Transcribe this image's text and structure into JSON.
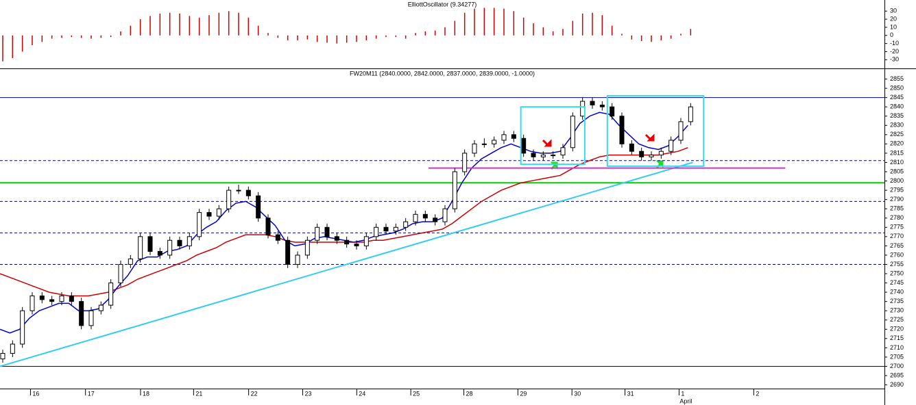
{
  "chart_data": [
    {
      "type": "bar",
      "title": "ElliottOscillator (9.34277)",
      "color": "#cc0000",
      "xlim": [
        0,
        90
      ],
      "ylim": [
        -39,
        42
      ],
      "yticks": [
        30,
        20,
        10,
        0,
        -10,
        -20,
        -30
      ],
      "values": [
        -32,
        -28,
        -20,
        -12,
        -8,
        -4,
        -3,
        -2,
        -3,
        -4,
        -3,
        -2,
        5,
        12,
        20,
        24,
        27,
        28,
        27,
        24,
        22,
        25,
        28,
        30,
        28,
        22,
        12,
        3,
        -3,
        -6,
        -6,
        -5,
        -8,
        -9,
        -10,
        -9,
        -8,
        -6,
        -4,
        -2,
        -2,
        -4,
        3,
        5,
        6,
        10,
        18,
        28,
        33,
        34,
        34,
        33,
        30,
        22,
        15,
        10,
        5,
        8,
        18,
        27,
        28,
        25,
        12,
        2,
        -5,
        -7,
        -8,
        -6,
        -4,
        2,
        8
      ]
    },
    {
      "type": "candlestick",
      "title": "FW20M11 (2840.0000, 2842.0000, 2837.0000, 2839.0000, -1.0000)",
      "up_color": "#ffffff",
      "down_color": "#000000",
      "xlim": [
        0,
        90
      ],
      "ylim": [
        2688,
        2860
      ],
      "yticks": [
        2855,
        2850,
        2845,
        2840,
        2835,
        2830,
        2825,
        2820,
        2815,
        2810,
        2805,
        2800,
        2795,
        2790,
        2785,
        2780,
        2775,
        2770,
        2765,
        2760,
        2755,
        2750,
        2745,
        2740,
        2735,
        2730,
        2725,
        2720,
        2715,
        2710,
        2705,
        2700,
        2695,
        2690
      ],
      "xticks": [
        {
          "value": 3.1,
          "label": "16"
        },
        {
          "value": 8.7,
          "label": "17"
        },
        {
          "value": 14.3,
          "label": "18"
        },
        {
          "value": 19.7,
          "label": "21"
        },
        {
          "value": 25.3,
          "label": "22"
        },
        {
          "value": 30.8,
          "label": "23"
        },
        {
          "value": 36.3,
          "label": "24"
        },
        {
          "value": 41.8,
          "label": "25"
        },
        {
          "value": 47.2,
          "label": "28"
        },
        {
          "value": 52.7,
          "label": "29"
        },
        {
          "value": 58.2,
          "label": "30"
        },
        {
          "value": 63.6,
          "label": "31"
        },
        {
          "value": 69.1,
          "label": "1"
        },
        {
          "value": 76.7,
          "label": "2"
        }
      ],
      "annotations": [
        {
          "text": "April",
          "x": 69.1
        }
      ],
      "open": [
        2704,
        2707,
        2712,
        2730,
        2738,
        2736,
        2735,
        2738,
        2735,
        2722,
        2730,
        2733,
        2745,
        2755,
        2758,
        2770,
        2762,
        2760,
        2768,
        2765,
        2770,
        2783,
        2781,
        2785,
        2795,
        2795,
        2792,
        2780,
        2771,
        2768,
        2755,
        2760,
        2768,
        2775,
        2770,
        2768,
        2766,
        2765,
        2770,
        2775,
        2773,
        2775,
        2778,
        2782,
        2780,
        2778,
        2785,
        2805,
        2815,
        2820,
        2820,
        2822,
        2825,
        2823,
        2815,
        2813,
        2814,
        2814,
        2818,
        2835,
        2843,
        2841,
        2840,
        2835,
        2820,
        2816,
        2813,
        2814,
        2816,
        2822,
        2832
      ],
      "high": [
        2709,
        2714,
        2732,
        2740,
        2740,
        2738,
        2740,
        2740,
        2737,
        2732,
        2735,
        2747,
        2757,
        2760,
        2772,
        2772,
        2764,
        2770,
        2770,
        2772,
        2785,
        2785,
        2787,
        2797,
        2798,
        2797,
        2794,
        2782,
        2773,
        2770,
        2762,
        2770,
        2777,
        2777,
        2772,
        2770,
        2768,
        2772,
        2777,
        2777,
        2777,
        2780,
        2784,
        2784,
        2782,
        2787,
        2807,
        2817,
        2822,
        2823,
        2824,
        2827,
        2827,
        2825,
        2817,
        2816,
        2816,
        2820,
        2837,
        2845,
        2845,
        2843,
        2842,
        2837,
        2822,
        2818,
        2816,
        2818,
        2824,
        2834,
        2842
      ],
      "low": [
        2702,
        2705,
        2710,
        2728,
        2734,
        2733,
        2733,
        2733,
        2720,
        2720,
        2728,
        2731,
        2743,
        2753,
        2756,
        2760,
        2758,
        2758,
        2763,
        2763,
        2768,
        2779,
        2779,
        2783,
        2793,
        2790,
        2778,
        2769,
        2766,
        2753,
        2753,
        2758,
        2766,
        2768,
        2766,
        2764,
        2763,
        2763,
        2768,
        2771,
        2771,
        2773,
        2776,
        2778,
        2776,
        2776,
        2783,
        2803,
        2813,
        2818,
        2818,
        2820,
        2821,
        2813,
        2811,
        2811,
        2812,
        2812,
        2816,
        2833,
        2839,
        2838,
        2833,
        2818,
        2814,
        2811,
        2811,
        2812,
        2814,
        2820,
        2830
      ],
      "close": [
        2707,
        2712,
        2730,
        2738,
        2736,
        2735,
        2738,
        2735,
        2722,
        2730,
        2733,
        2745,
        2755,
        2758,
        2770,
        2762,
        2760,
        2768,
        2765,
        2770,
        2783,
        2781,
        2785,
        2795,
        2795,
        2792,
        2780,
        2771,
        2768,
        2755,
        2760,
        2768,
        2775,
        2770,
        2768,
        2766,
        2765,
        2770,
        2775,
        2773,
        2775,
        2778,
        2782,
        2780,
        2778,
        2785,
        2805,
        2815,
        2820,
        2820,
        2822,
        2825,
        2823,
        2815,
        2813,
        2814,
        2814,
        2818,
        2835,
        2843,
        2841,
        2840,
        2835,
        2820,
        2816,
        2813,
        2814,
        2816,
        2822,
        2832,
        2840
      ],
      "overlays": [
        {
          "color": "#cc0000",
          "values": [
            2750,
            2748,
            2746,
            2744,
            2742,
            2740,
            2739,
            2738,
            2738,
            2738,
            2739,
            2740,
            2742,
            2744,
            2747,
            2749,
            2751,
            2753,
            2755,
            2757,
            2760,
            2762,
            2764,
            2767,
            2769,
            2771,
            2771,
            2771,
            2770,
            2768,
            2767,
            2767,
            2767,
            2767,
            2767,
            2767,
            2767,
            2767,
            2768,
            2768,
            2769,
            2770,
            2771,
            2772,
            2773,
            2774,
            2777,
            2781,
            2785,
            2789,
            2792,
            2795,
            2797,
            2799,
            2800,
            2801,
            2802,
            2803,
            2806,
            2809,
            2811,
            2813,
            2814,
            2814,
            2814,
            2814,
            2814,
            2814,
            2815,
            2816,
            2818
          ]
        },
        {
          "color": "#0000cc",
          "values": [
            2720,
            2718,
            2720,
            2726,
            2730,
            2732,
            2734,
            2734,
            2730,
            2730,
            2731,
            2736,
            2743,
            2749,
            2757,
            2759,
            2759,
            2762,
            2763,
            2765,
            2771,
            2775,
            2778,
            2784,
            2788,
            2789,
            2786,
            2781,
            2776,
            2768,
            2765,
            2766,
            2769,
            2770,
            2769,
            2768,
            2767,
            2768,
            2770,
            2771,
            2772,
            2774,
            2777,
            2778,
            2778,
            2780,
            2789,
            2799,
            2807,
            2812,
            2815,
            2818,
            2820,
            2818,
            2816,
            2815,
            2815,
            2816,
            2823,
            2831,
            2835,
            2837,
            2836,
            2830,
            2825,
            2820,
            2818,
            2817,
            2819,
            2824,
            2830
          ]
        }
      ],
      "hlines": [
        {
          "value": 2845,
          "color": "#000080",
          "dash": false,
          "width": 1
        },
        {
          "value": 2811,
          "color": "#000080",
          "dash": true,
          "width": 1
        },
        {
          "value": 2799,
          "color": "#00cc00",
          "dash": false,
          "width": 2
        },
        {
          "value": 2789,
          "color": "#000080",
          "dash": true,
          "width": 1
        },
        {
          "value": 2772,
          "color": "#000080",
          "dash": true,
          "width": 1
        },
        {
          "value": 2755,
          "color": "#000080",
          "dash": true,
          "width": 1
        },
        {
          "value": 2700,
          "color": "#000080",
          "dash": false,
          "width": 1
        }
      ],
      "lines": [
        {
          "x": [
            0,
            70.5
          ],
          "y": [
            2700,
            2810
          ],
          "color": "#33ccee"
        },
        {
          "x": [
            43.6,
            79.9
          ],
          "y": [
            2807,
            2807
          ],
          "color": "#cc33cc"
        }
      ],
      "boxes": [
        {
          "x": [
            53,
            59.5
          ],
          "y": [
            2809,
            2840
          ],
          "color": "#33ddee"
        },
        {
          "x": [
            61.8,
            71.6
          ],
          "y": [
            2808,
            2846
          ],
          "color": "#33ddee"
        }
      ]
    }
  ]
}
